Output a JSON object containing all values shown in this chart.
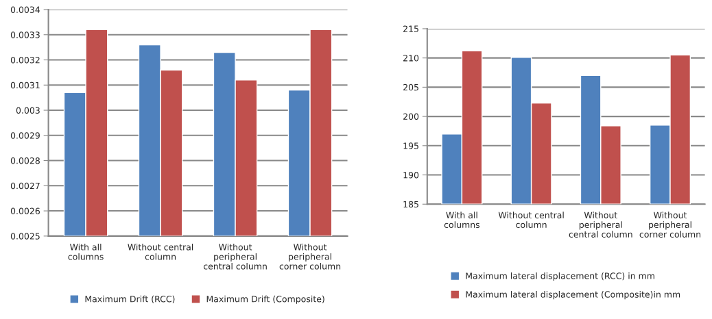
{
  "chart_data": [
    {
      "type": "bar",
      "categories": [
        "With all\ncolumns",
        "Without central\ncolumn",
        "Without\nperipheral\ncentral column",
        "Without\nperipheral\ncorner column"
      ],
      "series": [
        {
          "name": "Maximum Drift (RCC)",
          "color": "#4f81bd",
          "values": [
            0.00307,
            0.00326,
            0.00323,
            0.00308
          ]
        },
        {
          "name": "Maximum Drift (Composite)",
          "color": "#c0504d",
          "values": [
            0.00332,
            0.00316,
            0.00312,
            0.00332
          ]
        }
      ],
      "ylim": [
        0.0025,
        0.0034
      ],
      "yticks": [
        0.0025,
        0.0026,
        0.0027,
        0.0028,
        0.0029,
        0.003,
        0.0031,
        0.0032,
        0.0033,
        0.0034
      ],
      "grid": "y",
      "legend": "bottom"
    },
    {
      "type": "bar",
      "categories": [
        "With all\ncolumns",
        "Without central\ncolumn",
        "Without\nperipheral\ncentral column",
        "Without\nperipheral\ncorner column"
      ],
      "series": [
        {
          "name": "Maximum lateral displacement (RCC) in mm",
          "color": "#4f81bd",
          "values": [
            197,
            210.1,
            207,
            198.5
          ]
        },
        {
          "name": "Maximum lateral displacement (Composite)in mm",
          "color": "#c0504d",
          "values": [
            211.2,
            202.3,
            198.4,
            210.5
          ]
        }
      ],
      "ylim": [
        185,
        215
      ],
      "yticks": [
        185,
        190,
        195,
        200,
        205,
        210,
        215
      ],
      "grid": "y",
      "legend": "bottom"
    }
  ]
}
